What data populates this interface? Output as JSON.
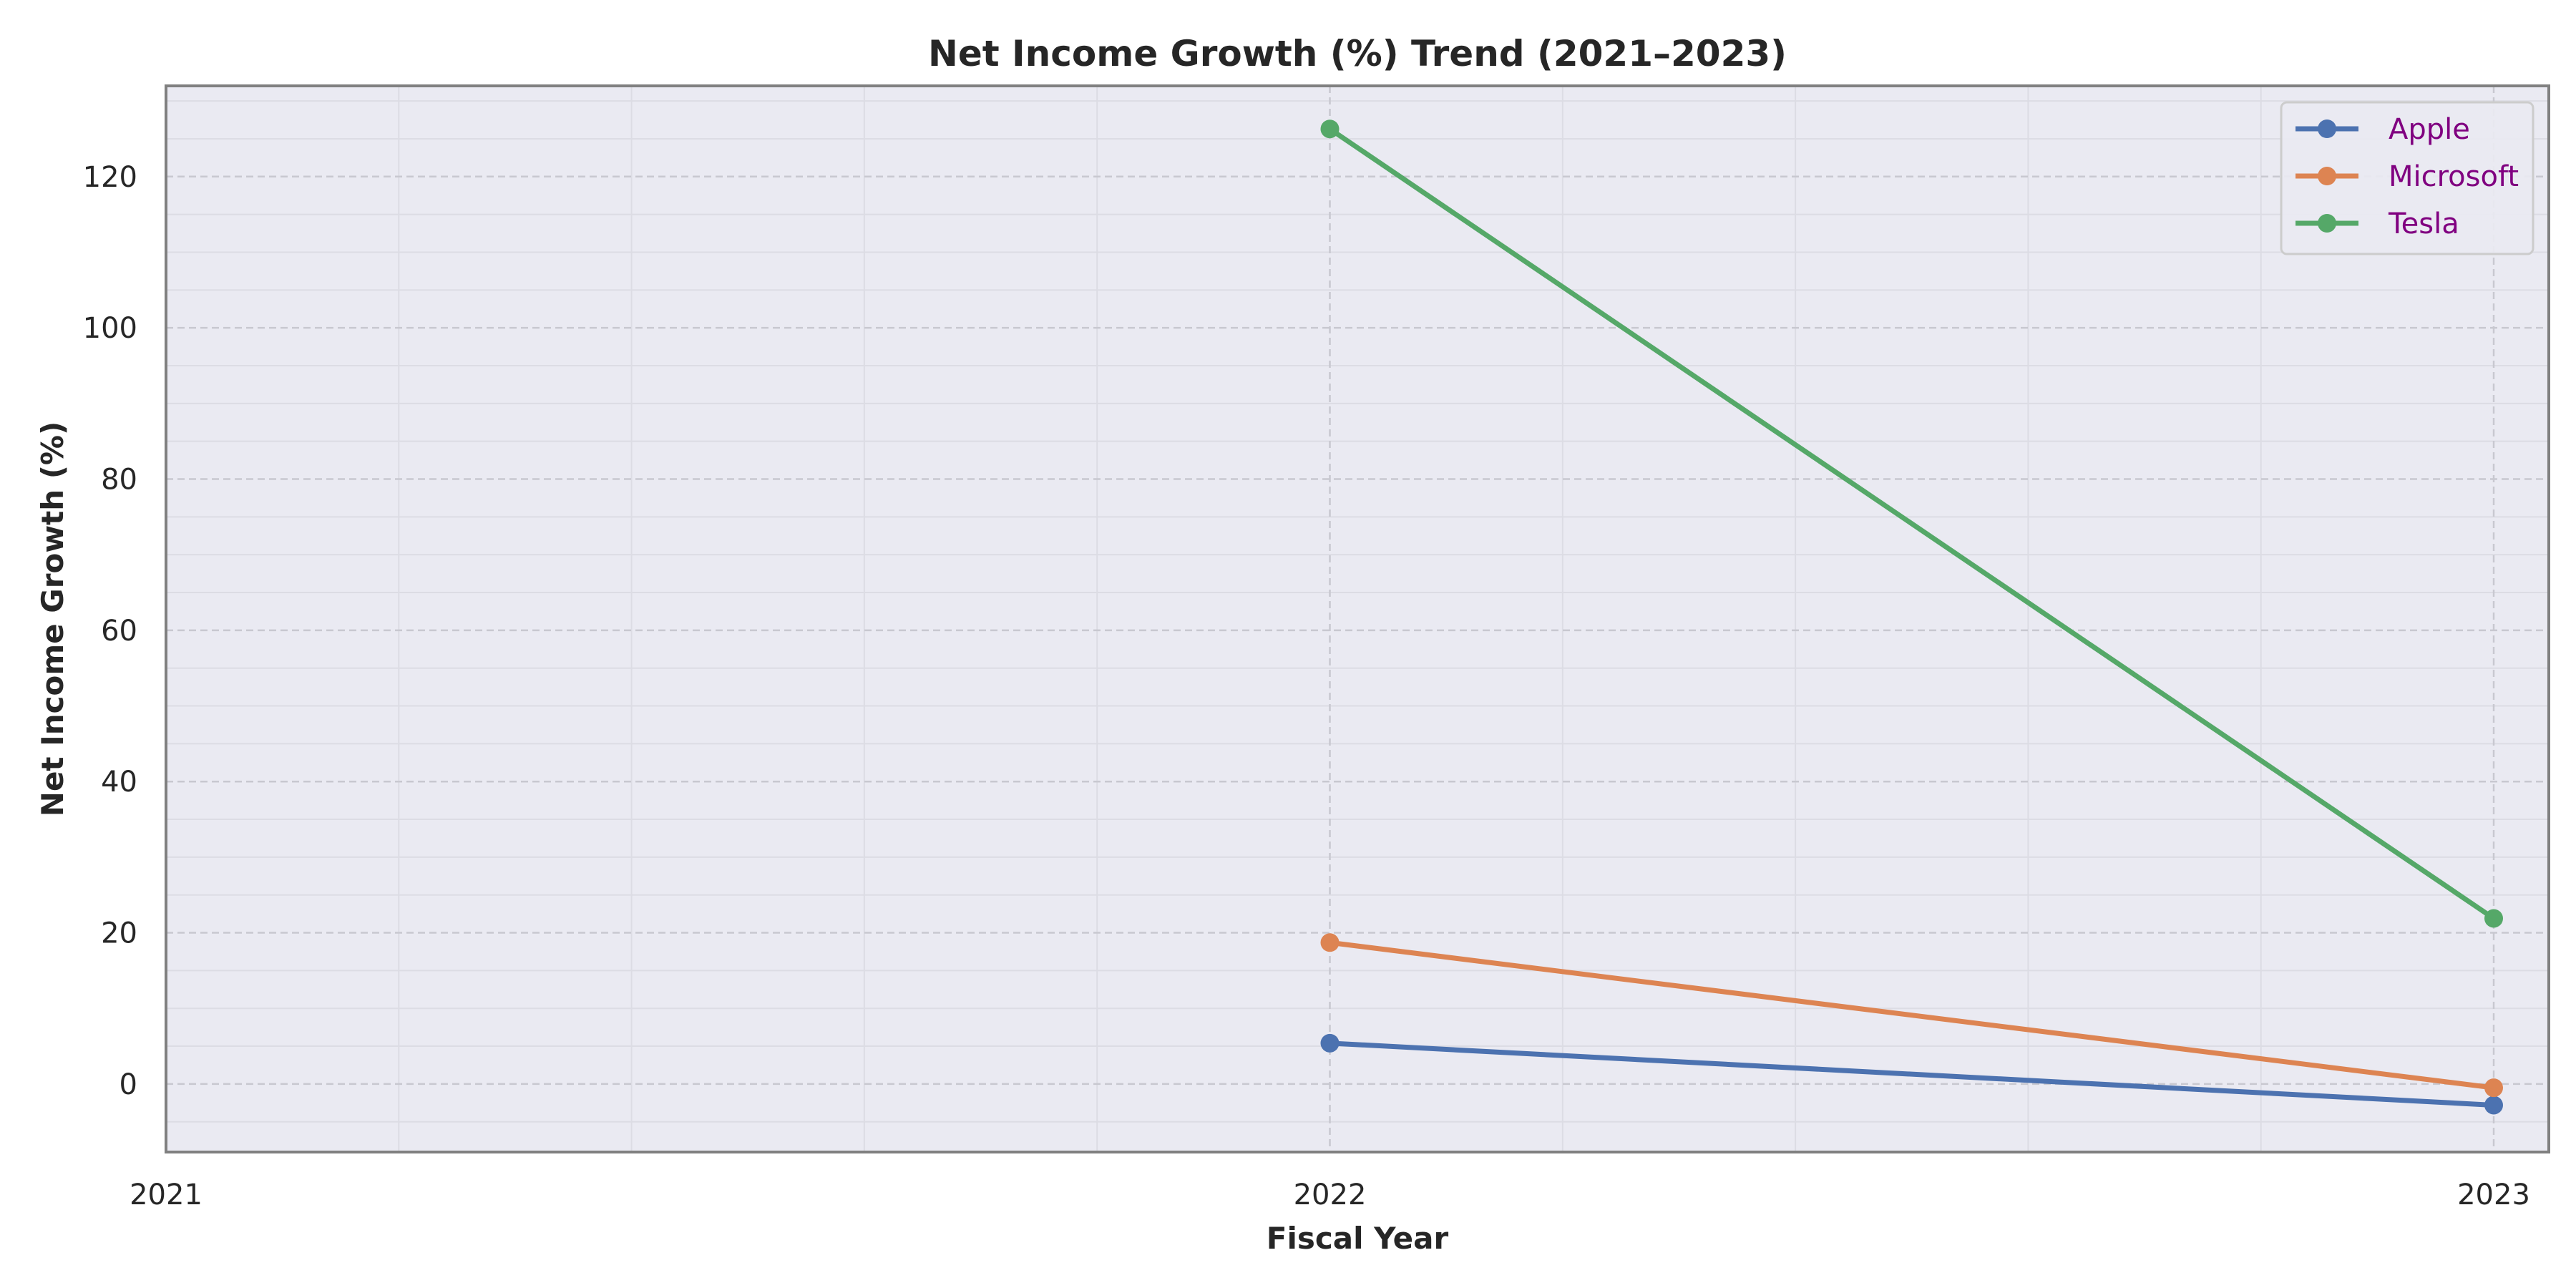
{
  "chart_data": {
    "type": "line",
    "title": "Net Income Growth (%) Trend (2021–2023)",
    "xlabel": "Fiscal Year",
    "ylabel": "Net Income Growth (%)",
    "x": [
      "2021",
      "2022",
      "2023"
    ],
    "xlim": [
      2021,
      2023
    ],
    "ylim": [
      -9,
      132
    ],
    "yticks": [
      0,
      20,
      40,
      60,
      80,
      100,
      120
    ],
    "grid": true,
    "legend_position": "top-right",
    "series": [
      {
        "name": "Apple",
        "color": "#4c72b0",
        "values": [
          null,
          5.4,
          -2.8
        ]
      },
      {
        "name": "Microsoft",
        "color": "#dd8452",
        "values": [
          null,
          18.7,
          -0.5
        ]
      },
      {
        "name": "Tesla",
        "color": "#55a868",
        "values": [
          null,
          126.3,
          21.9
        ]
      }
    ]
  },
  "colors": {
    "plot_background": "#eaeaf2",
    "frame": "#808080",
    "grid_major": "#c8c8d0",
    "grid_minor": "#dcdce4",
    "legend_text": "#800080"
  }
}
